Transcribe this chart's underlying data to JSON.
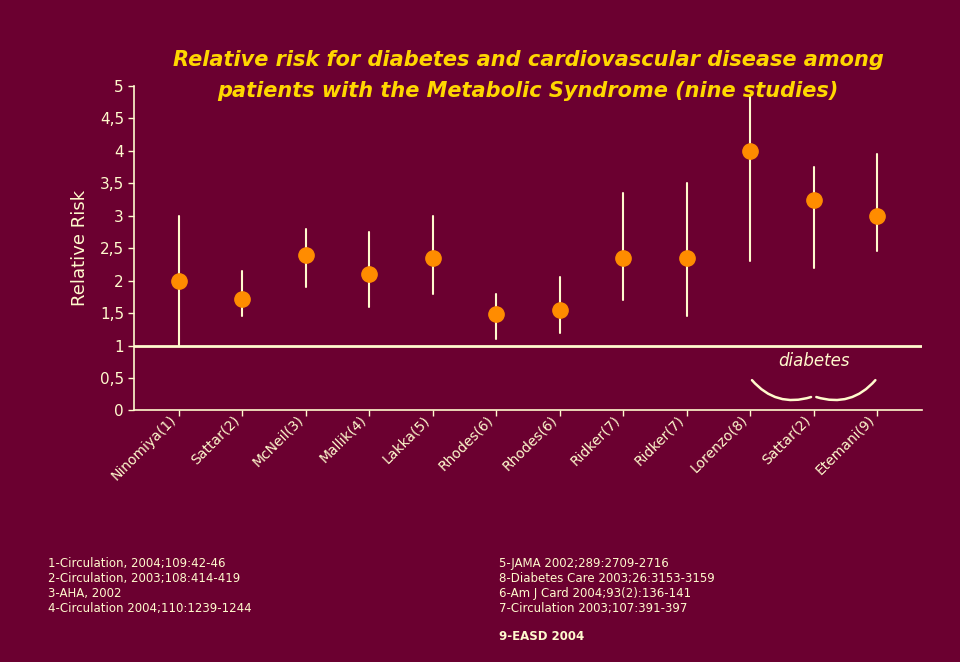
{
  "title_line1": "Relative risk for diabetes and cardiovascular disease among",
  "title_line2": "patients with the Metabolic Syndrome (nine studies)",
  "ylabel": "Relative Risk",
  "bg_color": "#6b0030",
  "title_color": "#FFD700",
  "axis_color": "#FFFACD",
  "orange_color": "#FF8C00",
  "categories": [
    "Ninomiya(1)",
    "Sattar(2)",
    "McNeil(3)",
    "Mallik(4)",
    "Lakka(5)",
    "Rhodes(6)",
    "Rhodes(6)",
    "Ridker(7)",
    "Ridker(7)",
    "Lorenzo(8)",
    "Sattar(2)",
    "Etemani(9)"
  ],
  "values": [
    2.0,
    1.72,
    2.4,
    2.1,
    2.35,
    1.48,
    1.55,
    2.35,
    2.35,
    4.0,
    3.25,
    3.0
  ],
  "ci_low": [
    1.0,
    1.45,
    1.9,
    1.6,
    1.8,
    1.1,
    1.2,
    1.7,
    1.45,
    2.3,
    2.2,
    2.45
  ],
  "ci_high": [
    3.0,
    2.15,
    2.8,
    2.75,
    3.0,
    1.8,
    2.05,
    3.35,
    3.5,
    4.85,
    3.75,
    3.95
  ],
  "ylim": [
    0,
    5
  ],
  "yticks": [
    0,
    0.5,
    1,
    1.5,
    2,
    2.5,
    3,
    3.5,
    4,
    4.5,
    5
  ],
  "ytick_labels": [
    "0",
    "0,5",
    "1",
    "1,5",
    "2",
    "2,5",
    "3",
    "3,5",
    "4",
    "4,5",
    "5"
  ],
  "ref_line": 1.0,
  "diabetes_label": "diabetes",
  "footnotes_left": [
    "1-Circulation, 2004;109:42-46",
    "2-Circulation, 2003;108:414-419",
    "3-AHA, 2002",
    "4-Circulation 2004;110:1239-1244"
  ],
  "footnotes_right": [
    "5-JAMA 2002;289:2709-2716",
    "8-Diabetes Care 2003;26:3153-3159",
    "6-Am J Card 2004;93(2):136-141",
    "7-Circulation 2003;107:391-397",
    "9-EASD 2004"
  ]
}
